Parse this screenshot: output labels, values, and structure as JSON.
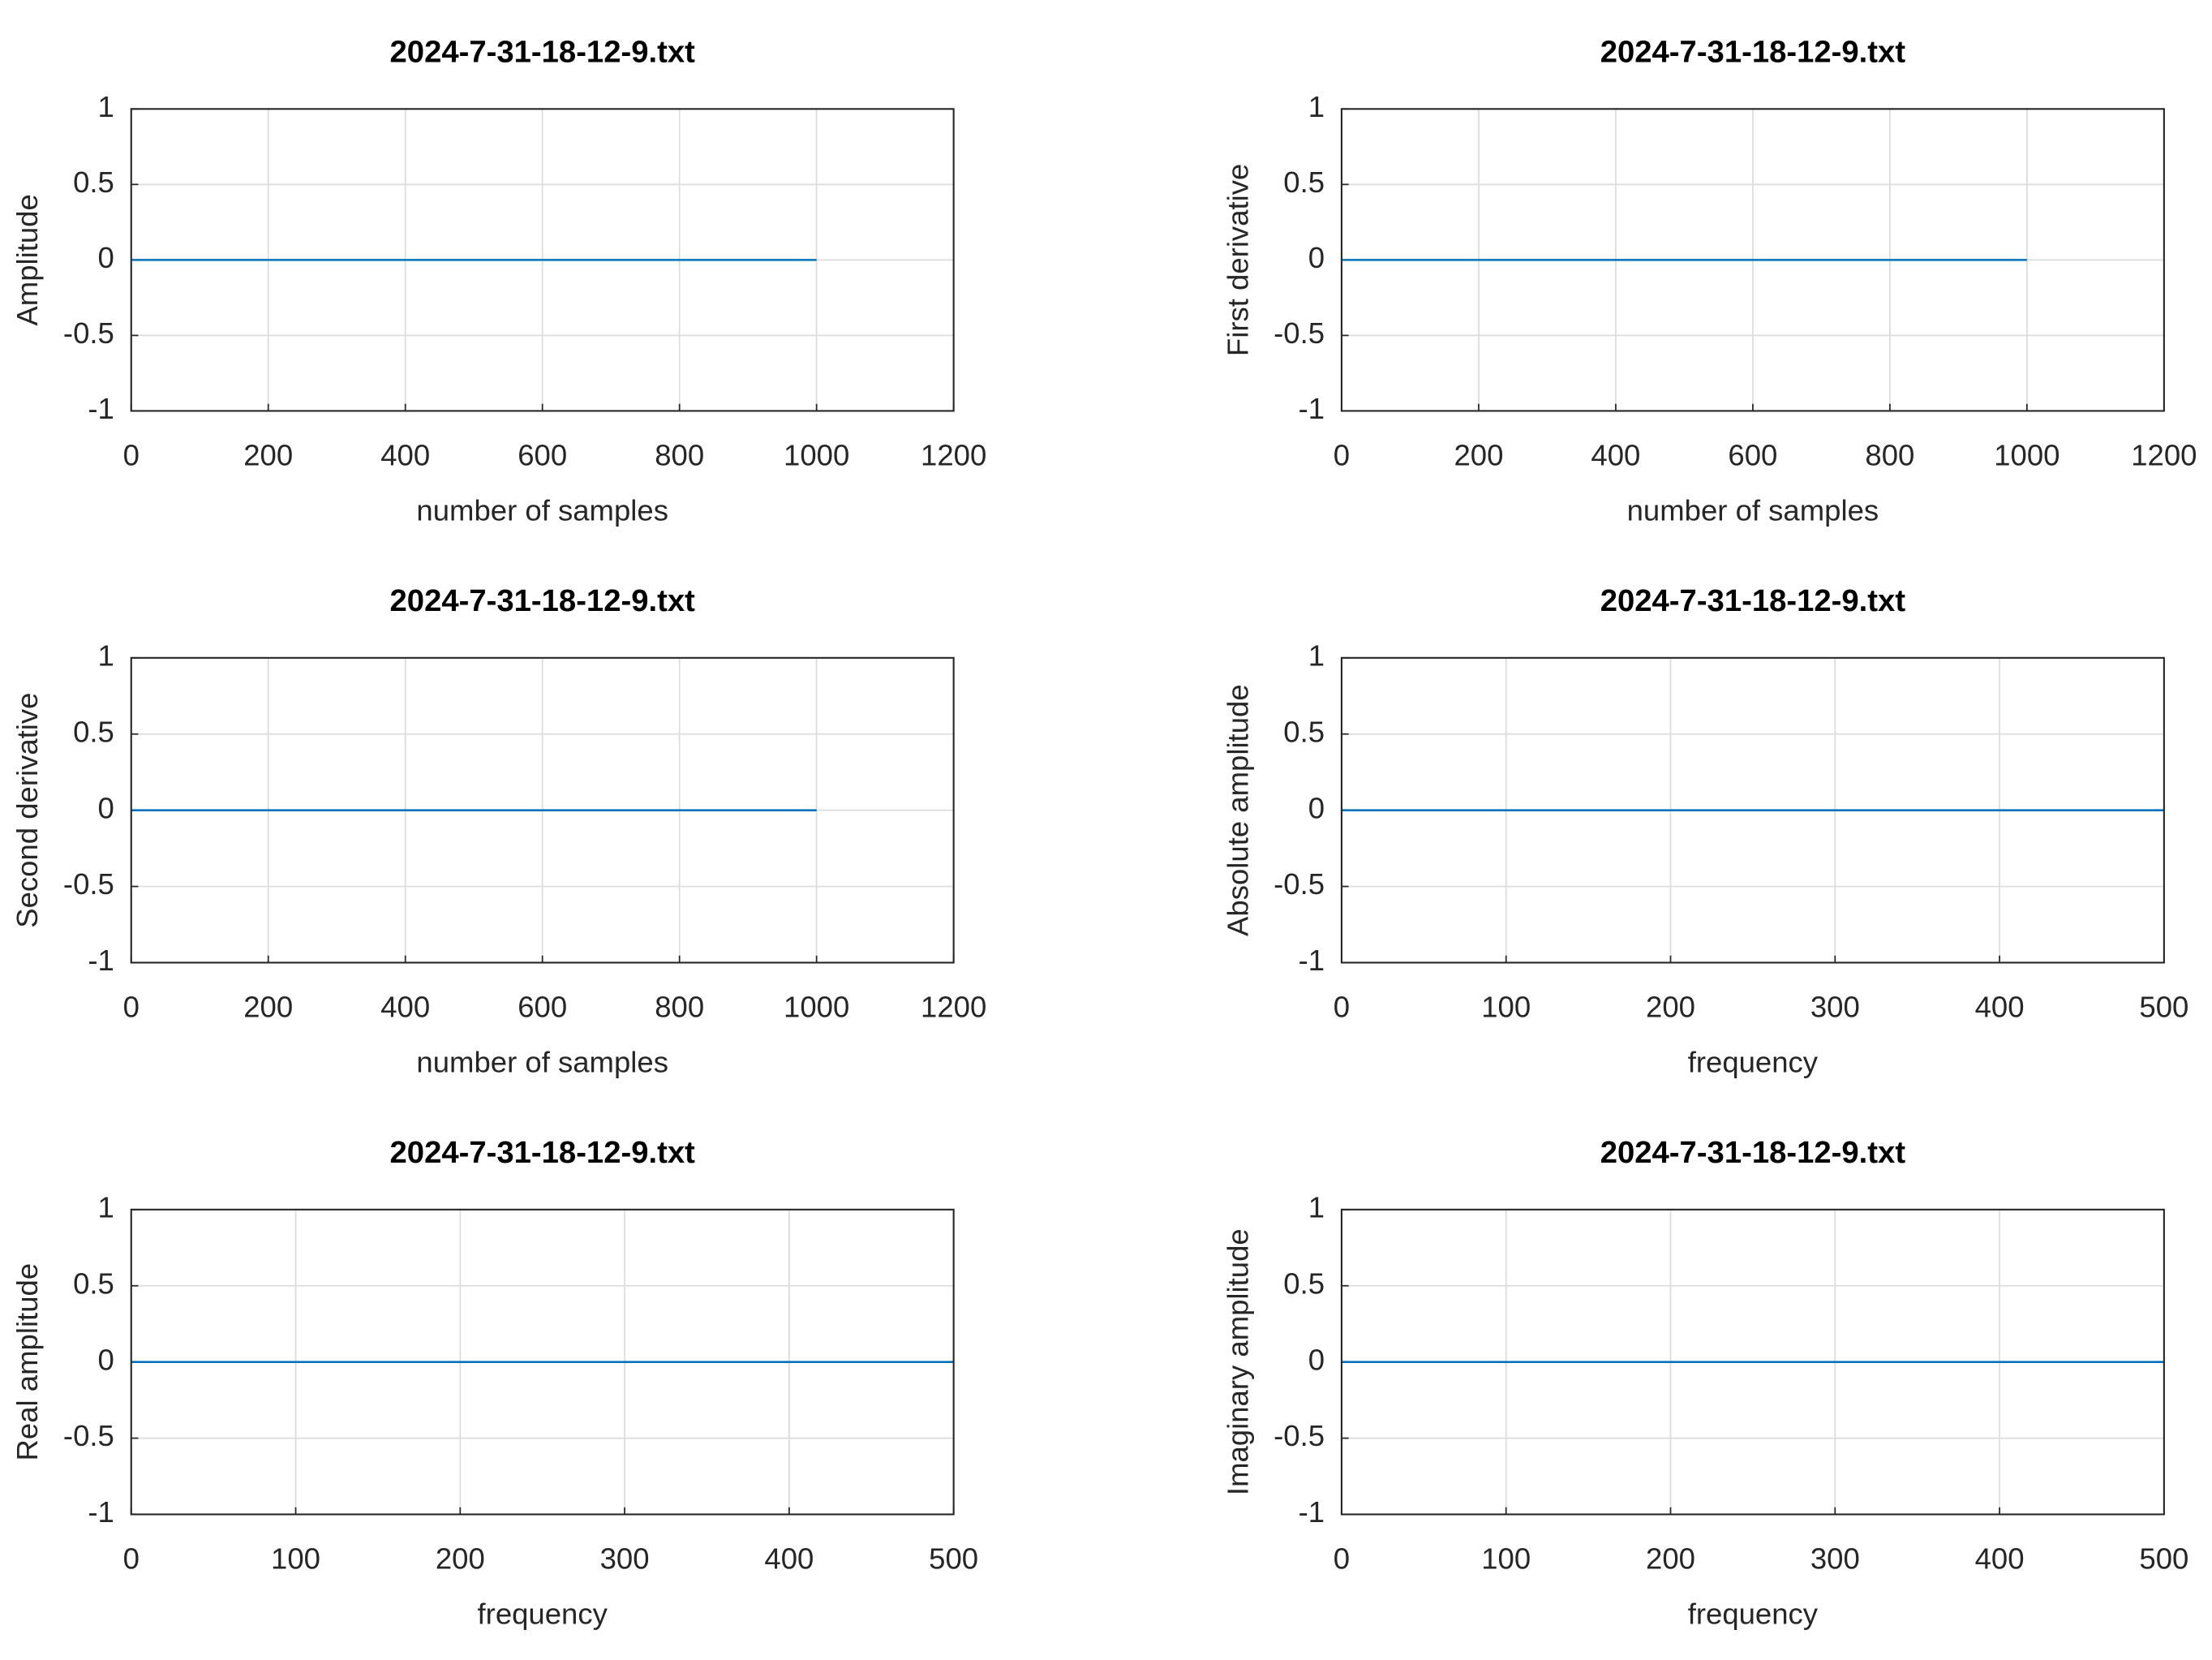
{
  "chart_data": [
    {
      "type": "line",
      "title": "2024-7-31-18-12-9.txt",
      "ylabel": "Amplitude",
      "xlabel": "number of samples",
      "x": [
        0,
        1000
      ],
      "values": [
        0,
        0
      ],
      "color": "#0072bd",
      "xlim": [
        0,
        1200
      ],
      "xticks": [
        0,
        200,
        400,
        600,
        800,
        1000,
        1200
      ],
      "ylim": [
        -1,
        1
      ],
      "yticks": [
        -1,
        -0.5,
        0,
        0.5,
        1
      ],
      "grid": true
    },
    {
      "type": "line",
      "title": "2024-7-31-18-12-9.txt",
      "ylabel": "First derivative",
      "xlabel": "number of samples",
      "x": [
        0,
        1000
      ],
      "values": [
        0,
        0
      ],
      "color": "#0072bd",
      "xlim": [
        0,
        1200
      ],
      "xticks": [
        0,
        200,
        400,
        600,
        800,
        1000,
        1200
      ],
      "ylim": [
        -1,
        1
      ],
      "yticks": [
        -1,
        -0.5,
        0,
        0.5,
        1
      ],
      "grid": true
    },
    {
      "type": "line",
      "title": "2024-7-31-18-12-9.txt",
      "ylabel": "Second derivative",
      "xlabel": "number of samples",
      "x": [
        0,
        1000
      ],
      "values": [
        0,
        0
      ],
      "color": "#0072bd",
      "xlim": [
        0,
        1200
      ],
      "xticks": [
        0,
        200,
        400,
        600,
        800,
        1000,
        1200
      ],
      "ylim": [
        -1,
        1
      ],
      "yticks": [
        -1,
        -0.5,
        0,
        0.5,
        1
      ],
      "grid": true
    },
    {
      "type": "line",
      "title": "2024-7-31-18-12-9.txt",
      "ylabel": "Absolute amplitude",
      "xlabel": "frequency",
      "x": [
        0,
        500
      ],
      "values": [
        0,
        0
      ],
      "color": "#0072bd",
      "xlim": [
        0,
        500
      ],
      "xticks": [
        0,
        100,
        200,
        300,
        400,
        500
      ],
      "ylim": [
        -1,
        1
      ],
      "yticks": [
        -1,
        -0.5,
        0,
        0.5,
        1
      ],
      "grid": true
    },
    {
      "type": "line",
      "title": "2024-7-31-18-12-9.txt",
      "ylabel": "Real amplitude",
      "xlabel": "frequency",
      "x": [
        0,
        500
      ],
      "values": [
        0,
        0
      ],
      "color": "#0072bd",
      "xlim": [
        0,
        500
      ],
      "xticks": [
        0,
        100,
        200,
        300,
        400,
        500
      ],
      "ylim": [
        -1,
        1
      ],
      "yticks": [
        -1,
        -0.5,
        0,
        0.5,
        1
      ],
      "grid": true
    },
    {
      "type": "line",
      "title": "2024-7-31-18-12-9.txt",
      "ylabel": "Imaginary amplitude",
      "xlabel": "frequency",
      "x": [
        0,
        500
      ],
      "values": [
        0,
        0
      ],
      "color": "#0072bd",
      "xlim": [
        0,
        500
      ],
      "xticks": [
        0,
        100,
        200,
        300,
        400,
        500
      ],
      "ylim": [
        -1,
        1
      ],
      "yticks": [
        -1,
        -0.5,
        0,
        0.5,
        1
      ],
      "grid": true
    }
  ]
}
